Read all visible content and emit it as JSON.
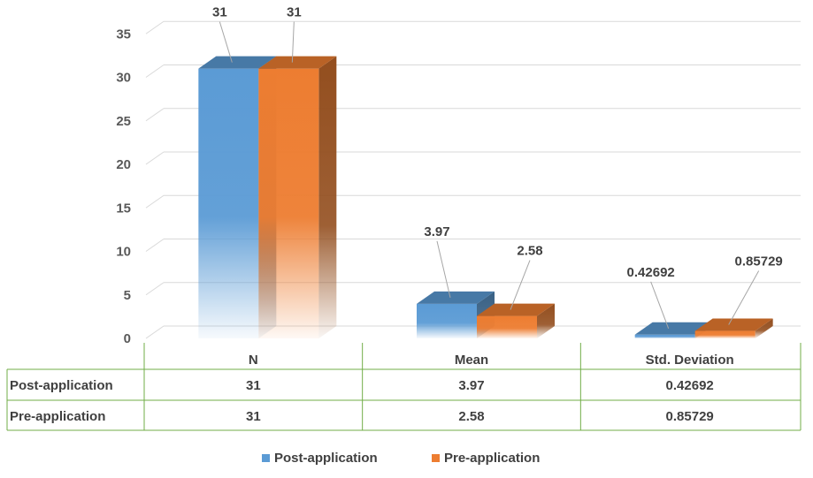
{
  "chart_data": {
    "type": "bar",
    "subtype": "3d-clustered-column-with-data-table",
    "categories": [
      "N",
      "Mean",
      "Std. Deviation"
    ],
    "series": [
      {
        "name": "Post-application",
        "values": [
          31,
          3.97,
          0.42692
        ],
        "labels": [
          "31",
          "3.97",
          "0.42692"
        ],
        "color": "#5B9BD5"
      },
      {
        "name": "Pre-application",
        "values": [
          31,
          2.58,
          0.85729
        ],
        "labels": [
          "31",
          "2.58",
          "0.85729"
        ],
        "color": "#ED7D31"
      }
    ],
    "ylim": [
      0,
      35
    ],
    "y_ticks": [
      "0",
      "5",
      "10",
      "15",
      "20",
      "25",
      "30",
      "35"
    ],
    "grid": true,
    "legend": "bottom",
    "data_table": true,
    "table_border_color": "#70AD47"
  }
}
